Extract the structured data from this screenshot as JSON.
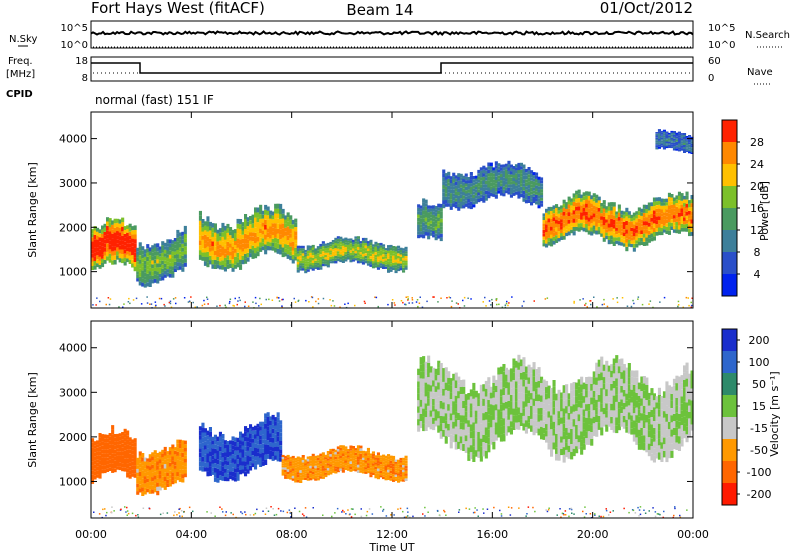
{
  "header": {
    "station": "Fort Hays West (fitACF)",
    "beam": "Beam 14",
    "date": "01/Oct/2012"
  },
  "summary_panels": {
    "nsky_label": "N.Sky",
    "nsearch_label": "N.Search",
    "noise_ticks": [
      "10^5",
      "10^0"
    ],
    "freq_label_1": "Freq.",
    "freq_label_2": "[MHz]",
    "freq_ticks": [
      "18",
      "8"
    ],
    "nave_label": "Nave",
    "nave_ticks": [
      "60",
      "0"
    ],
    "cpid_label": "CPID",
    "cpid_value": "normal (fast) 151 IF"
  },
  "chart_data": [
    {
      "type": "heatmap",
      "name": "power",
      "ylabel": "Slant Range [km]",
      "xlabel": "",
      "x_ticks": [
        "00:00",
        "04:00",
        "08:00",
        "12:00",
        "16:00",
        "20:00",
        "00:00"
      ],
      "y_ticks": [
        1000,
        2000,
        3000,
        4000
      ],
      "ylim": [
        180,
        4600
      ],
      "xlim_hours": [
        0,
        24
      ],
      "colorbar": {
        "label": "Power [dB]",
        "ticks": [
          4,
          8,
          12,
          16,
          20,
          24,
          28
        ],
        "range": [
          0,
          32
        ],
        "colors": [
          "#0022ee",
          "#2a4fc9",
          "#3d7f9a",
          "#4a9a60",
          "#7cc02a",
          "#ffc000",
          "#ff8800",
          "#ff2200"
        ]
      },
      "echo_regions": [
        {
          "t0": 0.0,
          "t1": 1.8,
          "r0": 800,
          "r1": 2200,
          "level": 24
        },
        {
          "t0": 1.8,
          "t1": 3.8,
          "r0": 700,
          "r1": 2000,
          "level": 12
        },
        {
          "t0": 4.3,
          "t1": 8.2,
          "r0": 1000,
          "r1": 2500,
          "level": 18
        },
        {
          "t0": 8.2,
          "t1": 12.6,
          "r0": 1000,
          "r1": 1800,
          "level": 14
        },
        {
          "t0": 13.0,
          "t1": 14.0,
          "r0": 1400,
          "r1": 2600,
          "level": 10
        },
        {
          "t0": 14.0,
          "t1": 18.0,
          "r0": 2400,
          "r1": 3500,
          "level": 8
        },
        {
          "t0": 18.0,
          "t1": 24.0,
          "r0": 1500,
          "r1": 2800,
          "level": 20
        },
        {
          "t0": 22.5,
          "t1": 24.0,
          "r0": 3600,
          "r1": 4200,
          "level": 6
        }
      ]
    },
    {
      "type": "heatmap",
      "name": "velocity",
      "ylabel": "Slant Range [km]",
      "xlabel": "Time UT",
      "x_ticks": [
        "00:00",
        "04:00",
        "08:00",
        "12:00",
        "16:00",
        "20:00",
        "00:00"
      ],
      "y_ticks": [
        1000,
        2000,
        3000,
        4000
      ],
      "ylim": [
        180,
        4600
      ],
      "xlim_hours": [
        0,
        24
      ],
      "colorbar": {
        "label": "Velocity [m s⁻¹]",
        "ticks": [
          "200",
          "100",
          "50",
          "15",
          "-15",
          "-50",
          "-100",
          "-200"
        ],
        "colors": [
          "#1a2ecc",
          "#2e66cc",
          "#2e8a6a",
          "#6cc23c",
          "#c8c8c8",
          "#ff9900",
          "#ff6600",
          "#ff1a00"
        ]
      },
      "echo_regions": [
        {
          "t0": 0.0,
          "t1": 1.8,
          "r0": 800,
          "r1": 2200,
          "vel": -120
        },
        {
          "t0": 1.8,
          "t1": 3.8,
          "r0": 700,
          "r1": 2000,
          "vel": -60
        },
        {
          "t0": 4.3,
          "t1": 7.6,
          "r0": 1000,
          "r1": 2500,
          "vel": 150
        },
        {
          "t0": 7.6,
          "t1": 12.6,
          "r0": 1000,
          "r1": 1800,
          "vel": -60
        },
        {
          "t0": 13.0,
          "t1": 24.0,
          "r0": 1500,
          "r1": 3800,
          "vel": 0
        }
      ]
    }
  ]
}
